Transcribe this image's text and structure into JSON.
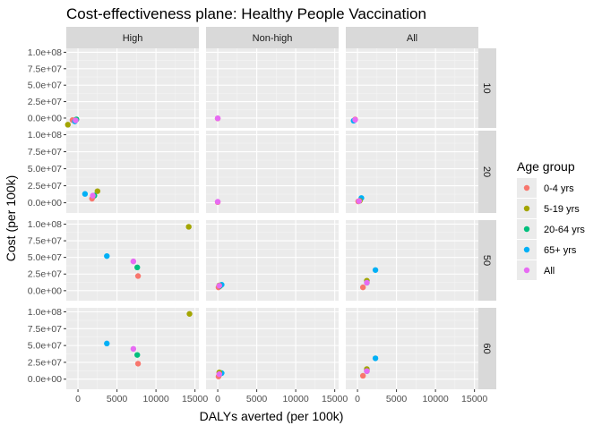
{
  "chart_data": {
    "type": "scatter",
    "title": "Cost-effectiveness plane: Healthy People Vaccination",
    "xlabel": "DALYs averted (per 100k)",
    "ylabel": "Cost (per 100k)",
    "xlim": [
      -1500,
      15500
    ],
    "ylim": [
      -15000000,
      106000000
    ],
    "x_ticks": [
      0,
      5000,
      10000,
      15000
    ],
    "x_tick_labels": [
      "0",
      "5000",
      "10000",
      "15000"
    ],
    "y_ticks": [
      0,
      25000000,
      50000000,
      75000000,
      100000000
    ],
    "y_tick_labels": [
      "0.0e+00",
      "2.5e+07",
      "5.0e+07",
      "7.5e+07",
      "1.0e+08"
    ],
    "col_facets": [
      "High",
      "Non-high",
      "All"
    ],
    "row_facets": [
      "10",
      "20",
      "50",
      "60"
    ],
    "legend": {
      "title": "Age group",
      "position": "right",
      "entries": [
        {
          "name": "0-4 yrs",
          "color": "#F8766D"
        },
        {
          "name": "5-19 yrs",
          "color": "#A3A500"
        },
        {
          "name": "20-64 yrs",
          "color": "#00BF7D"
        },
        {
          "name": "65+ yrs",
          "color": "#00B0F6"
        },
        {
          "name": "All",
          "color": "#E76BF3"
        }
      ]
    },
    "grid": true,
    "panels": [
      {
        "row": "10",
        "col": "High",
        "points": [
          {
            "series": "5-19 yrs",
            "x": -1300,
            "y": -10000000
          },
          {
            "series": "0-4 yrs",
            "x": -700,
            "y": -3000000
          },
          {
            "series": "20-64 yrs",
            "x": -200,
            "y": -2000000
          },
          {
            "series": "65+ yrs",
            "x": -400,
            "y": -5000000
          },
          {
            "series": "All",
            "x": -300,
            "y": -3500000
          }
        ]
      },
      {
        "row": "10",
        "col": "Non-high",
        "points": [
          {
            "series": "0-4 yrs",
            "x": 0,
            "y": -500000
          },
          {
            "series": "All",
            "x": 0,
            "y": -300000
          }
        ]
      },
      {
        "row": "10",
        "col": "All",
        "points": [
          {
            "series": "0-4 yrs",
            "x": -300,
            "y": -2000000
          },
          {
            "series": "65+ yrs",
            "x": -500,
            "y": -4000000
          },
          {
            "series": "All",
            "x": -300,
            "y": -2500000
          }
        ]
      },
      {
        "row": "20",
        "col": "High",
        "points": [
          {
            "series": "5-19 yrs",
            "x": 2500,
            "y": 17000000
          },
          {
            "series": "65+ yrs",
            "x": 900,
            "y": 13000000
          },
          {
            "series": "20-64 yrs",
            "x": 2100,
            "y": 10500000
          },
          {
            "series": "0-4 yrs",
            "x": 1800,
            "y": 6000000
          },
          {
            "series": "All",
            "x": 1900,
            "y": 10500000
          }
        ]
      },
      {
        "row": "20",
        "col": "Non-high",
        "points": [
          {
            "series": "0-4 yrs",
            "x": 0,
            "y": 1000000
          },
          {
            "series": "All",
            "x": 0,
            "y": 1500000
          }
        ]
      },
      {
        "row": "20",
        "col": "All",
        "points": [
          {
            "series": "65+ yrs",
            "x": 500,
            "y": 7000000
          },
          {
            "series": "5-19 yrs",
            "x": 300,
            "y": 3000000
          },
          {
            "series": "0-4 yrs",
            "x": 100,
            "y": 2000000
          },
          {
            "series": "All",
            "x": 200,
            "y": 2500000
          }
        ]
      },
      {
        "row": "50",
        "col": "High",
        "points": [
          {
            "series": "5-19 yrs",
            "x": 14200,
            "y": 96000000
          },
          {
            "series": "65+ yrs",
            "x": 3700,
            "y": 52000000
          },
          {
            "series": "All",
            "x": 7100,
            "y": 44000000
          },
          {
            "series": "20-64 yrs",
            "x": 7600,
            "y": 35000000
          },
          {
            "series": "0-4 yrs",
            "x": 7700,
            "y": 22000000
          }
        ]
      },
      {
        "row": "50",
        "col": "Non-high",
        "points": [
          {
            "series": "0-4 yrs",
            "x": 100,
            "y": 5000000
          },
          {
            "series": "20-64 yrs",
            "x": 300,
            "y": 7000000
          },
          {
            "series": "65+ yrs",
            "x": 500,
            "y": 9000000
          },
          {
            "series": "5-19 yrs",
            "x": 200,
            "y": 8000000
          },
          {
            "series": "All",
            "x": 200,
            "y": 7500000
          }
        ]
      },
      {
        "row": "50",
        "col": "All",
        "points": [
          {
            "series": "65+ yrs",
            "x": 2300,
            "y": 31000000
          },
          {
            "series": "5-19 yrs",
            "x": 1200,
            "y": 15000000
          },
          {
            "series": "20-64 yrs",
            "x": 1200,
            "y": 12000000
          },
          {
            "series": "0-4 yrs",
            "x": 700,
            "y": 5000000
          },
          {
            "series": "All",
            "x": 1200,
            "y": 12000000
          }
        ]
      },
      {
        "row": "60",
        "col": "High",
        "points": [
          {
            "series": "5-19 yrs",
            "x": 14300,
            "y": 97000000
          },
          {
            "series": "65+ yrs",
            "x": 3700,
            "y": 53000000
          },
          {
            "series": "All",
            "x": 7100,
            "y": 45000000
          },
          {
            "series": "20-64 yrs",
            "x": 7600,
            "y": 36000000
          },
          {
            "series": "0-4 yrs",
            "x": 7700,
            "y": 23000000
          }
        ]
      },
      {
        "row": "60",
        "col": "Non-high",
        "points": [
          {
            "series": "0-4 yrs",
            "x": 100,
            "y": 4000000
          },
          {
            "series": "20-64 yrs",
            "x": 300,
            "y": 8000000
          },
          {
            "series": "65+ yrs",
            "x": 500,
            "y": 9000000
          },
          {
            "series": "5-19 yrs",
            "x": 200,
            "y": 10000000
          },
          {
            "series": "All",
            "x": 200,
            "y": 7500000
          }
        ]
      },
      {
        "row": "60",
        "col": "All",
        "points": [
          {
            "series": "65+ yrs",
            "x": 2300,
            "y": 31000000
          },
          {
            "series": "5-19 yrs",
            "x": 1200,
            "y": 15000000
          },
          {
            "series": "20-64 yrs",
            "x": 1200,
            "y": 12000000
          },
          {
            "series": "0-4 yrs",
            "x": 700,
            "y": 5000000
          },
          {
            "series": "All",
            "x": 1200,
            "y": 12000000
          }
        ]
      }
    ]
  }
}
